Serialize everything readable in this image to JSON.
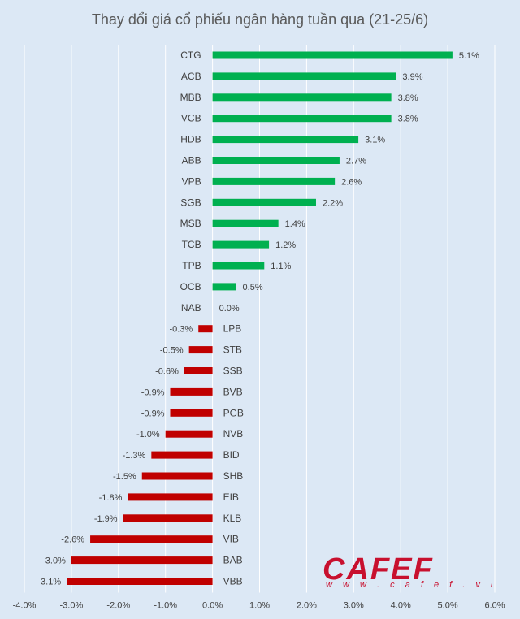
{
  "chart_data": {
    "type": "bar",
    "orientation": "horizontal",
    "title": "Thay đổi giá cổ phiếu ngân hàng tuần qua (21-25/6)",
    "categories": [
      "CTG",
      "ACB",
      "MBB",
      "VCB",
      "HDB",
      "ABB",
      "VPB",
      "SGB",
      "MSB",
      "TCB",
      "TPB",
      "OCB",
      "NAB",
      "LPB",
      "STB",
      "SSB",
      "BVB",
      "PGB",
      "NVB",
      "BID",
      "SHB",
      "EIB",
      "KLB",
      "VIB",
      "BAB",
      "VBB"
    ],
    "values": [
      5.1,
      3.9,
      3.8,
      3.8,
      3.1,
      2.7,
      2.6,
      2.2,
      1.4,
      1.2,
      1.1,
      0.5,
      0.0,
      -0.3,
      -0.5,
      -0.6,
      -0.9,
      -0.9,
      -1.0,
      -1.3,
      -1.5,
      -1.8,
      -1.9,
      -2.6,
      -3.0,
      -3.1
    ],
    "value_labels": [
      "5.1%",
      "3.9%",
      "3.8%",
      "3.8%",
      "3.1%",
      "2.7%",
      "2.6%",
      "2.2%",
      "1.4%",
      "1.2%",
      "1.1%",
      "0.5%",
      "0.0%",
      "-0.3%",
      "-0.5%",
      "-0.6%",
      "-0.9%",
      "-0.9%",
      "-1.0%",
      "-1.3%",
      "-1.5%",
      "-1.8%",
      "-1.9%",
      "-2.6%",
      "-3.0%",
      "-3.1%"
    ],
    "xlim": [
      -4.0,
      6.0
    ],
    "xticks": [
      -4.0,
      -3.0,
      -2.0,
      -1.0,
      0.0,
      1.0,
      2.0,
      3.0,
      4.0,
      5.0,
      6.0
    ],
    "xtick_labels": [
      "-4.0%",
      "-3.0%",
      "-2.0%",
      "-1.0%",
      "0.0%",
      "1.0%",
      "2.0%",
      "3.0%",
      "4.0%",
      "5.0%",
      "6.0%"
    ],
    "xlabel": "",
    "ylabel": "",
    "grid": true,
    "colors": {
      "positive": "#00b050",
      "negative": "#c00000",
      "grid": "#ffffff",
      "text": "#404040",
      "background": "#dce8f5"
    }
  },
  "watermark": {
    "brand": "CAFEF",
    "url": "w w w . c a f e f . v n"
  }
}
